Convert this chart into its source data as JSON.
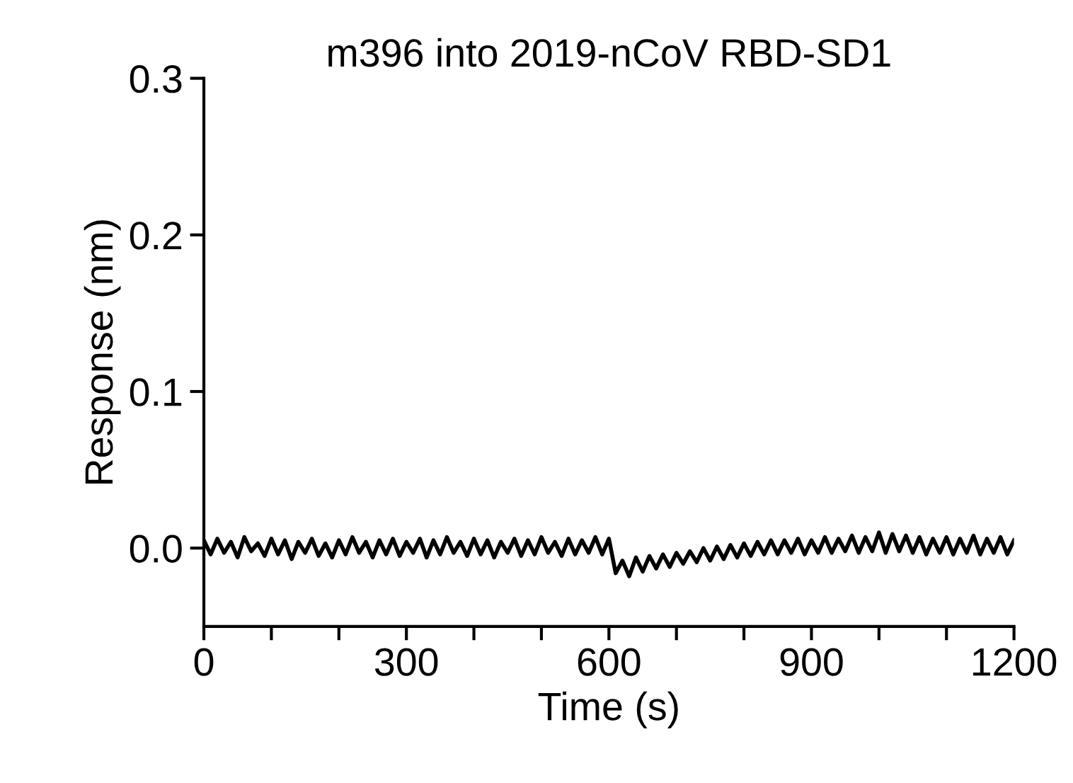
{
  "chart_data": {
    "type": "line",
    "title": "m396 into 2019-nCoV RBD-SD1",
    "xlabel": "Time (s)",
    "ylabel": "Response (nm)",
    "x": [
      0,
      10,
      20,
      30,
      40,
      50,
      60,
      70,
      80,
      90,
      100,
      110,
      120,
      130,
      140,
      150,
      160,
      170,
      180,
      190,
      200,
      210,
      220,
      230,
      240,
      250,
      260,
      270,
      280,
      290,
      300,
      310,
      320,
      330,
      340,
      350,
      360,
      370,
      380,
      390,
      400,
      410,
      420,
      430,
      440,
      450,
      460,
      470,
      480,
      490,
      500,
      510,
      520,
      530,
      540,
      550,
      560,
      570,
      580,
      590,
      600,
      610,
      620,
      630,
      640,
      650,
      660,
      670,
      680,
      690,
      700,
      710,
      720,
      730,
      740,
      750,
      760,
      770,
      780,
      790,
      800,
      810,
      820,
      830,
      840,
      850,
      860,
      870,
      880,
      890,
      900,
      910,
      920,
      930,
      940,
      950,
      960,
      970,
      980,
      990,
      1000,
      1010,
      1020,
      1030,
      1040,
      1050,
      1060,
      1070,
      1080,
      1090,
      1100,
      1110,
      1120,
      1130,
      1140,
      1150,
      1160,
      1170,
      1180,
      1190,
      1200
    ],
    "series": [
      {
        "color": "#000000",
        "values": [
          0.005,
          -0.004,
          0.006,
          -0.003,
          0.004,
          -0.006,
          0.007,
          -0.002,
          0.003,
          -0.005,
          0.006,
          -0.004,
          0.005,
          -0.007,
          0.004,
          -0.003,
          0.006,
          -0.005,
          0.003,
          -0.006,
          0.005,
          -0.004,
          0.007,
          -0.003,
          0.004,
          -0.006,
          0.005,
          -0.004,
          0.006,
          -0.005,
          0.004,
          -0.003,
          0.006,
          -0.006,
          0.005,
          -0.004,
          0.007,
          -0.003,
          0.004,
          -0.005,
          0.006,
          -0.004,
          0.005,
          -0.006,
          0.004,
          -0.003,
          0.006,
          -0.005,
          0.005,
          -0.004,
          0.007,
          -0.003,
          0.004,
          -0.005,
          0.006,
          -0.004,
          0.005,
          -0.003,
          0.007,
          -0.004,
          0.006,
          -0.016,
          -0.008,
          -0.018,
          -0.006,
          -0.015,
          -0.005,
          -0.013,
          -0.004,
          -0.012,
          -0.003,
          -0.01,
          -0.002,
          -0.009,
          0.0,
          -0.008,
          0.001,
          -0.007,
          0.002,
          -0.006,
          0.003,
          -0.005,
          0.004,
          -0.004,
          0.005,
          -0.004,
          0.005,
          -0.003,
          0.006,
          -0.004,
          0.005,
          -0.003,
          0.007,
          -0.003,
          0.006,
          -0.002,
          0.008,
          -0.003,
          0.007,
          -0.002,
          0.01,
          -0.003,
          0.009,
          -0.002,
          0.008,
          -0.003,
          0.007,
          -0.004,
          0.006,
          -0.003,
          0.007,
          -0.004,
          0.006,
          -0.003,
          0.008,
          -0.004,
          0.006,
          -0.003,
          0.007,
          -0.004,
          0.005
        ]
      }
    ],
    "xlim": [
      0,
      1200
    ],
    "xticks": [
      0,
      {
        "value": 100,
        "label": null
      },
      {
        "value": 200,
        "label": null
      },
      300,
      {
        "value": 400,
        "label": null
      },
      {
        "value": 500,
        "label": null
      },
      600,
      {
        "value": 700,
        "label": null
      },
      {
        "value": 800,
        "label": null
      },
      900,
      {
        "value": 1000,
        "label": null
      },
      {
        "value": 1100,
        "label": null
      },
      1200
    ],
    "ylim": [
      -0.05,
      0.3
    ],
    "yticks": [
      {
        "value": 0,
        "label": "0.0"
      },
      0.1,
      0.2,
      0.3
    ],
    "grid": false,
    "legend": false,
    "marker": "none",
    "line_style": "solid"
  }
}
